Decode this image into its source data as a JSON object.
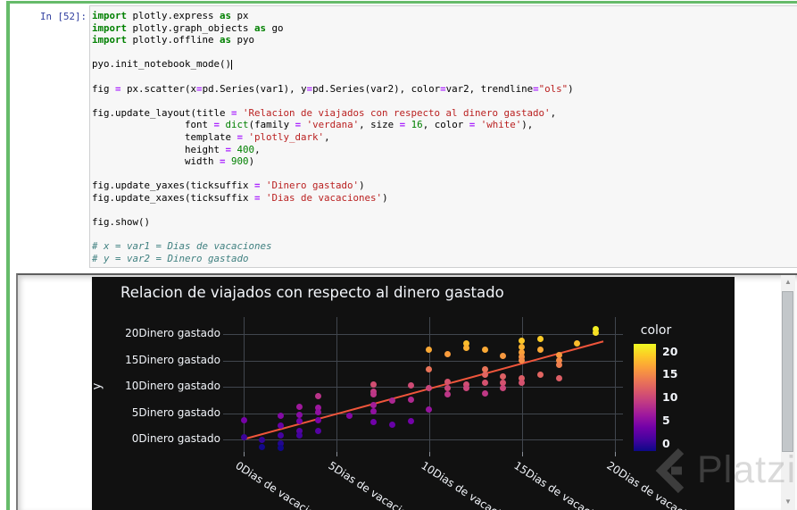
{
  "cell": {
    "prompt": "In [52]:",
    "code_lines": [
      [
        [
          "k",
          "import"
        ],
        [
          "p",
          " plotly.express "
        ],
        [
          "k",
          "as"
        ],
        [
          "p",
          " px"
        ]
      ],
      [
        [
          "k",
          "import"
        ],
        [
          "p",
          " plotly.graph_objects "
        ],
        [
          "k",
          "as"
        ],
        [
          "p",
          " go"
        ]
      ],
      [
        [
          "k",
          "import"
        ],
        [
          "p",
          " plotly.offline "
        ],
        [
          "k",
          "as"
        ],
        [
          "p",
          " pyo"
        ]
      ],
      [],
      [
        [
          "p",
          "pyo.init_notebook_mode()"
        ],
        [
          "cursor",
          ""
        ]
      ],
      [],
      [
        [
          "p",
          "fig "
        ],
        [
          "o",
          "="
        ],
        [
          "p",
          " px.scatter(x"
        ],
        [
          "o",
          "="
        ],
        [
          "p",
          "pd.Series(var1), y"
        ],
        [
          "o",
          "="
        ],
        [
          "p",
          "pd.Series(var2), color"
        ],
        [
          "o",
          "="
        ],
        [
          "p",
          "var2, trendline"
        ],
        [
          "o",
          "="
        ],
        [
          "s",
          "\"ols\""
        ],
        [
          "p",
          ")"
        ]
      ],
      [],
      [
        [
          "p",
          "fig.update_layout(title "
        ],
        [
          "o",
          "="
        ],
        [
          "p",
          " "
        ],
        [
          "s",
          "'Relacion de viajados con respecto al dinero gastado'"
        ],
        [
          "p",
          ","
        ]
      ],
      [
        [
          "p",
          "                font "
        ],
        [
          "o",
          "="
        ],
        [
          "p",
          " "
        ],
        [
          "b",
          "dict"
        ],
        [
          "p",
          "(family "
        ],
        [
          "o",
          "="
        ],
        [
          "p",
          " "
        ],
        [
          "s",
          "'verdana'"
        ],
        [
          "p",
          ", size "
        ],
        [
          "o",
          "="
        ],
        [
          "p",
          " "
        ],
        [
          "n",
          "16"
        ],
        [
          "p",
          ", color "
        ],
        [
          "o",
          "="
        ],
        [
          "p",
          " "
        ],
        [
          "s",
          "'white'"
        ],
        [
          "p",
          "),"
        ]
      ],
      [
        [
          "p",
          "                template "
        ],
        [
          "o",
          "="
        ],
        [
          "p",
          " "
        ],
        [
          "s",
          "'plotly_dark'"
        ],
        [
          "p",
          ","
        ]
      ],
      [
        [
          "p",
          "                height "
        ],
        [
          "o",
          "="
        ],
        [
          "p",
          " "
        ],
        [
          "n",
          "400"
        ],
        [
          "p",
          ","
        ]
      ],
      [
        [
          "p",
          "                width "
        ],
        [
          "o",
          "="
        ],
        [
          "p",
          " "
        ],
        [
          "n",
          "900"
        ],
        [
          "p",
          ")"
        ]
      ],
      [],
      [
        [
          "p",
          "fig.update_yaxes(ticksuffix "
        ],
        [
          "o",
          "="
        ],
        [
          "p",
          " "
        ],
        [
          "s",
          "'Dinero gastado'"
        ],
        [
          "p",
          ")"
        ]
      ],
      [
        [
          "p",
          "fig.update_xaxes(ticksuffix "
        ],
        [
          "o",
          "="
        ],
        [
          "p",
          " "
        ],
        [
          "s",
          "'Dias de vacaciones'"
        ],
        [
          "p",
          ")"
        ]
      ],
      [],
      [
        [
          "p",
          "fig.show()"
        ]
      ],
      [],
      [
        [
          "c",
          "# x = var1 = Dias de vacaciones"
        ]
      ],
      [
        [
          "c",
          "# y = var2 = Dinero gastado"
        ]
      ]
    ]
  },
  "chart_data": {
    "type": "scatter",
    "title": "Relacion de viajados con respecto al dinero gastado",
    "y_axis_title": "y",
    "x_tick_values": [
      0,
      5,
      10,
      15,
      20
    ],
    "x_tick_suffix": "Dias de vacaciones",
    "y_tick_values": [
      0,
      5,
      10,
      15,
      20
    ],
    "y_tick_suffix": "Dinero gastado",
    "xlim": [
      -1.11,
      20.41
    ],
    "ylim": [
      -2.37,
      23.22
    ],
    "grid": true,
    "background": "#111111",
    "points": [
      [
        0,
        3.7
      ],
      [
        0,
        0.4
      ],
      [
        1,
        0
      ],
      [
        1,
        -1.5
      ],
      [
        2,
        4.5
      ],
      [
        2,
        2.7
      ],
      [
        2,
        0.8
      ],
      [
        2,
        -0.8
      ],
      [
        2,
        -1.6
      ],
      [
        3,
        6.2
      ],
      [
        3,
        4.7
      ],
      [
        3,
        3.5
      ],
      [
        3,
        1.7
      ],
      [
        3,
        0.7
      ],
      [
        4,
        8.3
      ],
      [
        4,
        6.0
      ],
      [
        4,
        5.2
      ],
      [
        4,
        3.7
      ],
      [
        4,
        1.7
      ],
      [
        5.7,
        4.5
      ],
      [
        7,
        10.5
      ],
      [
        7,
        9.0
      ],
      [
        7,
        8.5
      ],
      [
        7,
        6.5
      ],
      [
        7,
        5.3
      ],
      [
        7,
        3.3
      ],
      [
        8,
        7.3
      ],
      [
        8,
        2.8
      ],
      [
        9,
        10.2
      ],
      [
        9,
        7.5
      ],
      [
        9,
        3.5
      ],
      [
        10,
        17.0
      ],
      [
        10,
        13.3
      ],
      [
        10,
        9.8
      ],
      [
        10,
        5.7
      ],
      [
        11,
        16.2
      ],
      [
        11,
        11.0
      ],
      [
        11,
        9.8
      ],
      [
        11,
        8.5
      ],
      [
        12,
        18.2
      ],
      [
        12,
        17.4
      ],
      [
        12,
        10.5
      ],
      [
        12,
        9.8
      ],
      [
        13,
        17.0
      ],
      [
        13,
        13.3
      ],
      [
        13,
        12.3
      ],
      [
        13,
        10.8
      ],
      [
        13,
        8.7
      ],
      [
        14,
        15.9
      ],
      [
        14,
        12.0
      ],
      [
        14,
        10.8
      ],
      [
        14,
        9.8
      ],
      [
        15,
        18.8
      ],
      [
        15,
        17.5
      ],
      [
        15,
        16.5
      ],
      [
        15,
        15.7
      ],
      [
        15,
        15.0
      ],
      [
        15,
        11.7
      ],
      [
        15,
        10.8
      ],
      [
        16,
        19.0
      ],
      [
        16,
        17.0
      ],
      [
        16,
        12.3
      ],
      [
        17,
        16.0
      ],
      [
        17,
        15.0
      ],
      [
        17,
        14.2
      ],
      [
        17,
        11.7
      ],
      [
        18,
        18.2
      ],
      [
        19,
        21.0
      ],
      [
        19,
        20.2
      ]
    ],
    "trendline": {
      "type": "ols",
      "x1": -0.05,
      "y1": 0.0,
      "x2": 19.4,
      "y2": 18.6,
      "color": "#ef553b"
    },
    "colorbar": {
      "title": "color",
      "tick_values": [
        0,
        5,
        10,
        15,
        20
      ],
      "cmin": -1.75,
      "cmax": 21.55,
      "colorscale": [
        [
          0.0,
          "#0d0887"
        ],
        [
          0.111,
          "#46039f"
        ],
        [
          0.222,
          "#7201a8"
        ],
        [
          0.333,
          "#9c179e"
        ],
        [
          0.444,
          "#bd3786"
        ],
        [
          0.556,
          "#d8576b"
        ],
        [
          0.667,
          "#ed7953"
        ],
        [
          0.778,
          "#fb9f3a"
        ],
        [
          0.889,
          "#fdca26"
        ],
        [
          1.0,
          "#f0f921"
        ]
      ]
    }
  },
  "watermark": {
    "text": "Platzi"
  }
}
